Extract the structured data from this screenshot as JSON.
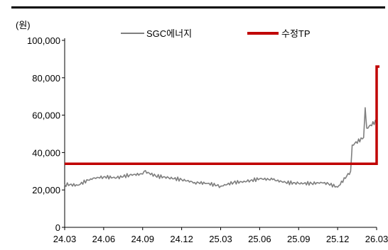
{
  "chart_data": {
    "type": "line",
    "unit_label": "(원)",
    "y_ticks": [
      "100,000",
      "80,000",
      "60,000",
      "40,000",
      "20,000",
      "0"
    ],
    "y_tick_values": [
      100000,
      80000,
      60000,
      40000,
      20000,
      0
    ],
    "x_ticks": [
      "24.03",
      "24.06",
      "24.09",
      "24.12",
      "25.03",
      "25.06",
      "25.09",
      "25.12",
      "26.03"
    ],
    "ylim": [
      0,
      100000
    ],
    "grid": false,
    "legend": "top-center",
    "series": [
      {
        "name": "SGC에너지",
        "color": "#7f7f7f",
        "points": [
          [
            "24.03",
            23000
          ],
          [
            "24.04",
            22500
          ],
          [
            "24.05",
            26000
          ],
          [
            "24.06",
            27000
          ],
          [
            "24.07",
            26500
          ],
          [
            "24.08",
            28000
          ],
          [
            "24.09",
            28500
          ],
          [
            "24.09",
            30000
          ],
          [
            "24.10",
            27500
          ],
          [
            "24.11",
            26500
          ],
          [
            "24.12",
            25500
          ],
          [
            "25.01",
            24000
          ],
          [
            "25.02",
            23500
          ],
          [
            "25.03",
            22000
          ],
          [
            "25.04",
            24000
          ],
          [
            "25.05",
            24500
          ],
          [
            "25.06",
            26000
          ],
          [
            "25.07",
            25500
          ],
          [
            "25.08",
            24000
          ],
          [
            "25.09",
            23500
          ],
          [
            "25.10",
            23500
          ],
          [
            "25.11",
            24000
          ],
          [
            "25.12",
            21500
          ],
          [
            "26.01",
            30000
          ],
          [
            "26.01",
            44000
          ],
          [
            "26.02",
            48000
          ],
          [
            "26.02",
            64000
          ],
          [
            "26.02",
            53000
          ],
          [
            "26.03",
            57000
          ]
        ]
      },
      {
        "name": "수정TP",
        "color": "#c00000",
        "points": [
          [
            "24.03",
            34000
          ],
          [
            "26.03",
            34000
          ],
          [
            "26.03",
            86000
          ]
        ]
      }
    ]
  },
  "colors": {
    "axis": "#000000",
    "top_border": "#000000"
  }
}
